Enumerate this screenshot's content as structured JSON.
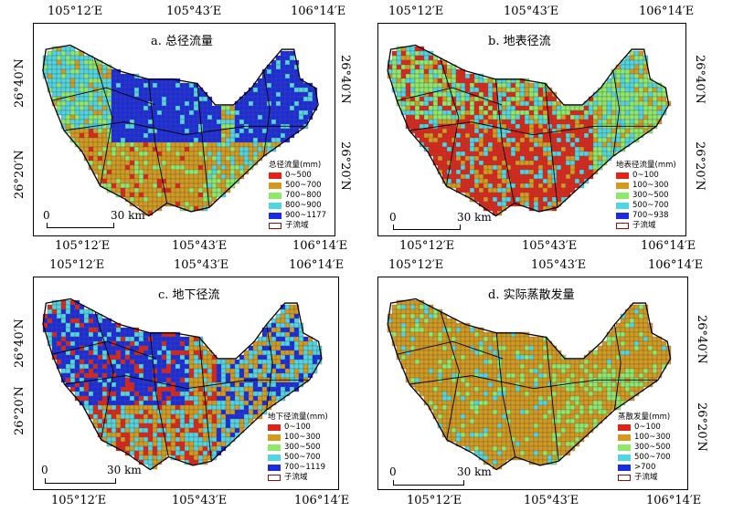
{
  "colors": {
    "red": "#e02418",
    "orange": "#d49a1c",
    "lightgreen": "#8ee86a",
    "cyan": "#4fd6e0",
    "blue": "#1a2be0",
    "grid": "#6b6b6b"
  },
  "axis": {
    "lon": [
      "105°12′E",
      "105°43′E",
      "106°14′E"
    ],
    "lat": [
      "26°40′N",
      "26°20′N"
    ]
  },
  "scale": {
    "zero": "0",
    "dist": "30 km"
  },
  "panels": [
    {
      "title": "a. 总径流量",
      "legend_title": "总径流量(mm)",
      "legend": [
        {
          "label": "0~500",
          "color": "#e02418"
        },
        {
          "label": "500~700",
          "color": "#d49a1c"
        },
        {
          "label": "700~800",
          "color": "#8ee86a"
        },
        {
          "label": "800~900",
          "color": "#4fd6e0"
        },
        {
          "label": "900~1177",
          "color": "#1a2be0"
        },
        {
          "label": "子流域",
          "color": "#ffffff"
        }
      ]
    },
    {
      "title": "b. 地表径流",
      "legend_title": "地表径流量(mm)",
      "legend": [
        {
          "label": "0~100",
          "color": "#e02418"
        },
        {
          "label": "100~300",
          "color": "#d49a1c"
        },
        {
          "label": "300~500",
          "color": "#8ee86a"
        },
        {
          "label": "500~700",
          "color": "#4fd6e0"
        },
        {
          "label": "700~938",
          "color": "#1a2be0"
        },
        {
          "label": "子流域",
          "color": "#ffffff"
        }
      ]
    },
    {
      "title": "c. 地下径流",
      "legend_title": "地下径流量(mm)",
      "legend": [
        {
          "label": "0~100",
          "color": "#e02418"
        },
        {
          "label": "100~300",
          "color": "#d49a1c"
        },
        {
          "label": "300~500",
          "color": "#8ee86a"
        },
        {
          "label": "500~700",
          "color": "#4fd6e0"
        },
        {
          "label": "700~1119",
          "color": "#1a2be0"
        },
        {
          "label": "子流域",
          "color": "#ffffff"
        }
      ]
    },
    {
      "title": "d. 实际蒸散发量",
      "legend_title": "蒸散发量(mm)",
      "legend": [
        {
          "label": "0~100",
          "color": "#e02418"
        },
        {
          "label": "100~300",
          "color": "#d49a1c"
        },
        {
          "label": "300~500",
          "color": "#8ee86a"
        },
        {
          "label": "500~700",
          "color": "#4fd6e0"
        },
        {
          "label": ">700",
          "color": "#1a2be0"
        },
        {
          "label": "子流域",
          "color": "#ffffff"
        }
      ]
    }
  ]
}
